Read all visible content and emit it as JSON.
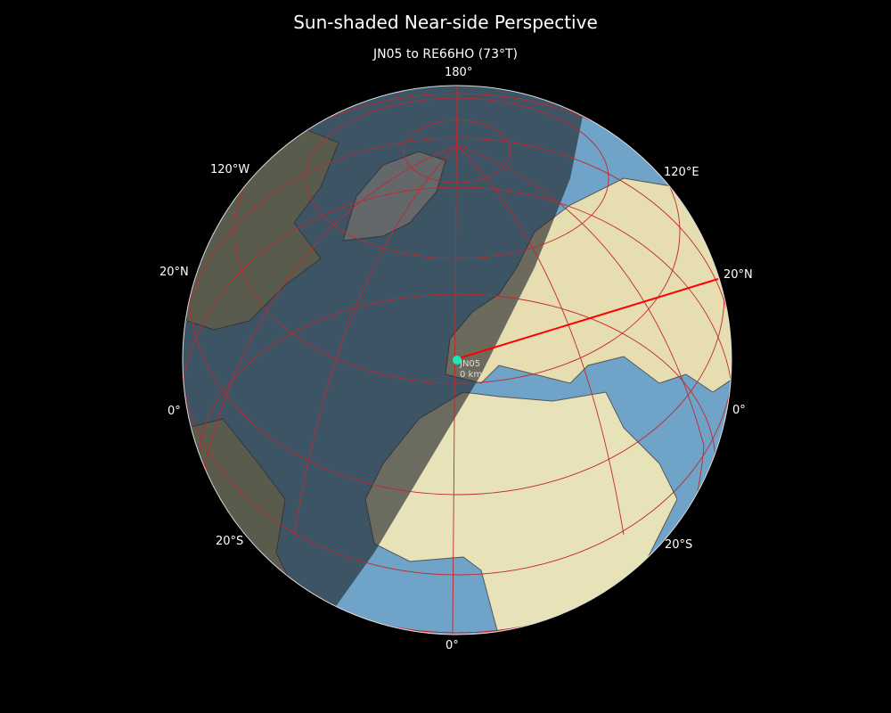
{
  "title": "Sun-shaded Near-side Perspective",
  "subtitle": "JN05 to RE66HO (73°T)",
  "graticule_labels": {
    "top": "180°",
    "upper_left": "120°W",
    "upper_right": "120°E",
    "left_20n": "20°N",
    "right_20n": "20°N",
    "left_0": "0°",
    "right_0": "0°",
    "left_20s": "20°S",
    "right_20s": "20°S",
    "bottom": "0°"
  },
  "marker": {
    "locator": "JN05",
    "distance": "0 km",
    "color": "#1de9b6"
  },
  "path": {
    "from": "JN05",
    "to": "RE66HO",
    "bearing": "73°T",
    "color": "#ff0000"
  },
  "colors": {
    "ocean": "#6fa3c8",
    "land": "#e8e2b8",
    "night_shade": "#2b2b2b",
    "graticule": "#c0282d",
    "background": "#000000"
  }
}
